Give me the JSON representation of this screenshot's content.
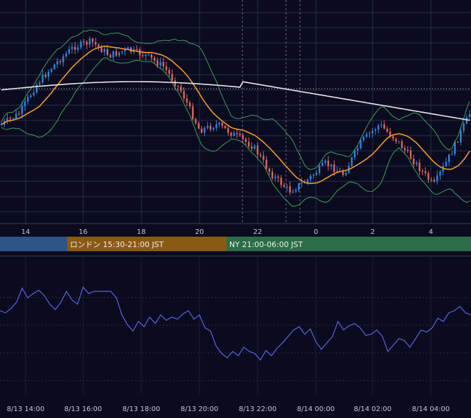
{
  "colors": {
    "background": "#0b0b1f",
    "grid": "#2a2c48",
    "candle_up": "#2f86e0",
    "candle_down": "#e0685f",
    "bollinger": "#3f9f5d",
    "ma_short": "#f29a2e",
    "ma_long": "#eaeaea",
    "oscillator": "#5b63e8",
    "session_asia": "#2c5587",
    "session_london": "#8a5a14",
    "session_ny": "#2a6d46"
  },
  "sessions": [
    {
      "label": "",
      "color": "#2c5587"
    },
    {
      "label": "ロンドン 15:30-21:00 JST",
      "color": "#8a5a14"
    },
    {
      "label": "NY 21:00-06:00 JST",
      "color": "#2a6d46"
    }
  ],
  "chart_data": [
    {
      "type": "candlestick",
      "x_ticks": [
        "14",
        "16",
        "18",
        "20",
        "22",
        "0",
        "2",
        "4"
      ],
      "price_level_index": [
        30,
        34,
        45,
        52,
        58,
        60,
        55,
        57,
        55,
        51,
        42,
        28,
        30,
        26,
        22,
        12,
        6,
        10,
        16,
        12,
        24,
        30,
        24,
        16,
        8,
        20,
        34
      ],
      "series": [
        {
          "name": "",
          "kind": "bollinger_upper"
        },
        {
          "name": "",
          "kind": "bollinger_lower"
        },
        {
          "name": "",
          "kind": "moving_average_short"
        },
        {
          "name": "",
          "kind": "moving_average_long"
        }
      ],
      "grid": true
    },
    {
      "type": "line",
      "x_ticks": [
        "8/13 14:00",
        "8/13 16:00",
        "8/13 18:00",
        "8/13 20:00",
        "8/13 22:00",
        "8/14 00:00",
        "8/14 02:00",
        "8/14 04:00"
      ],
      "values": [
        62,
        60,
        64,
        70,
        83,
        74,
        78,
        81,
        76,
        68,
        63,
        70,
        80,
        72,
        68,
        84,
        78,
        80,
        80,
        80,
        80,
        74,
        58,
        49,
        43,
        52,
        47,
        56,
        50,
        58,
        53,
        56,
        54,
        59,
        62,
        54,
        58,
        46,
        43,
        29,
        22,
        18,
        24,
        20,
        28,
        24,
        22,
        16,
        25,
        20,
        27,
        32,
        38,
        44,
        47,
        40,
        45,
        33,
        26,
        32,
        38,
        52,
        44,
        48,
        50,
        46,
        39,
        40,
        44,
        38,
        24,
        30,
        36,
        34,
        28,
        36,
        44,
        42,
        46,
        55,
        52,
        60,
        62,
        66,
        60,
        58
      ],
      "grid": true
    }
  ]
}
